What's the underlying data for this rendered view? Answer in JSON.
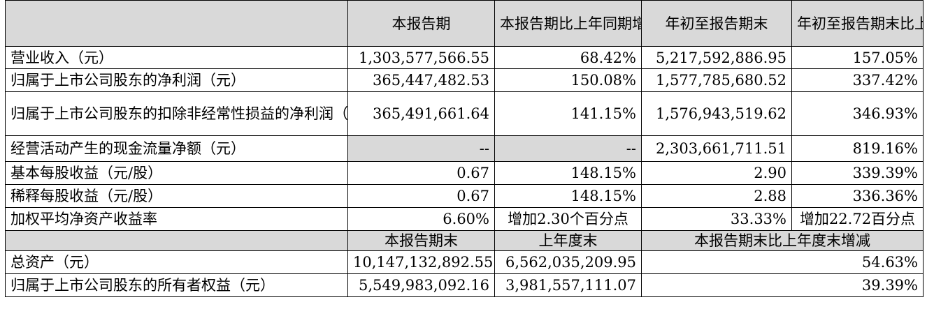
{
  "header": {
    "col1": "本报告期",
    "col2": "本报告期比上年同期增减",
    "col3": "年初至报告期末",
    "col4": "年初至报告期末比上年同期增减"
  },
  "rows": [
    {
      "label": "营业收入（元）",
      "v1": "1,303,577,566.55",
      "v2": "68.42%",
      "v3": "5,217,592,886.95",
      "v4": "157.05%"
    },
    {
      "label": "归属于上市公司股东的净利润（元）",
      "v1": "365,447,482.53",
      "v2": "150.08%",
      "v3": "1,577,785,680.52",
      "v4": "337.42%"
    },
    {
      "label": "归属于上市公司股东的扣除非经常性损益的净利润（元）",
      "v1": "365,491,661.64",
      "v2": "141.15%",
      "v3": "1,576,943,519.62",
      "v4": "346.93%"
    },
    {
      "label": "经营活动产生的现金流量净额（元）",
      "v1": "--",
      "v2": "--",
      "v3": "2,303,661,711.51",
      "v4": "819.16%"
    },
    {
      "label": "基本每股收益（元/股）",
      "v1": "0.67",
      "v2": "148.15%",
      "v3": "2.90",
      "v4": "339.39%"
    },
    {
      "label": "稀释每股收益（元/股）",
      "v1": "0.67",
      "v2": "148.15%",
      "v3": "2.88",
      "v4": "336.36%"
    },
    {
      "label": "加权平均净资产收益率",
      "v1": "6.60%",
      "v2": "增加2.30个百分点",
      "v3": "33.33%",
      "v4": "增加22.72百分点"
    }
  ],
  "subheader": {
    "col1": "本报告期末",
    "col2": "上年度末",
    "col3": "本报告期末比上年度末增减"
  },
  "balance_rows": [
    {
      "label": "总资产（元）",
      "v1": "10,147,132,892.55",
      "v2": "6,562,035,209.95",
      "v3": "54.63%"
    },
    {
      "label": "归属于上市公司股东的所有者权益（元）",
      "v1": "5,549,983,092.16",
      "v2": "3,981,557,111.07",
      "v3": "39.39%"
    }
  ]
}
